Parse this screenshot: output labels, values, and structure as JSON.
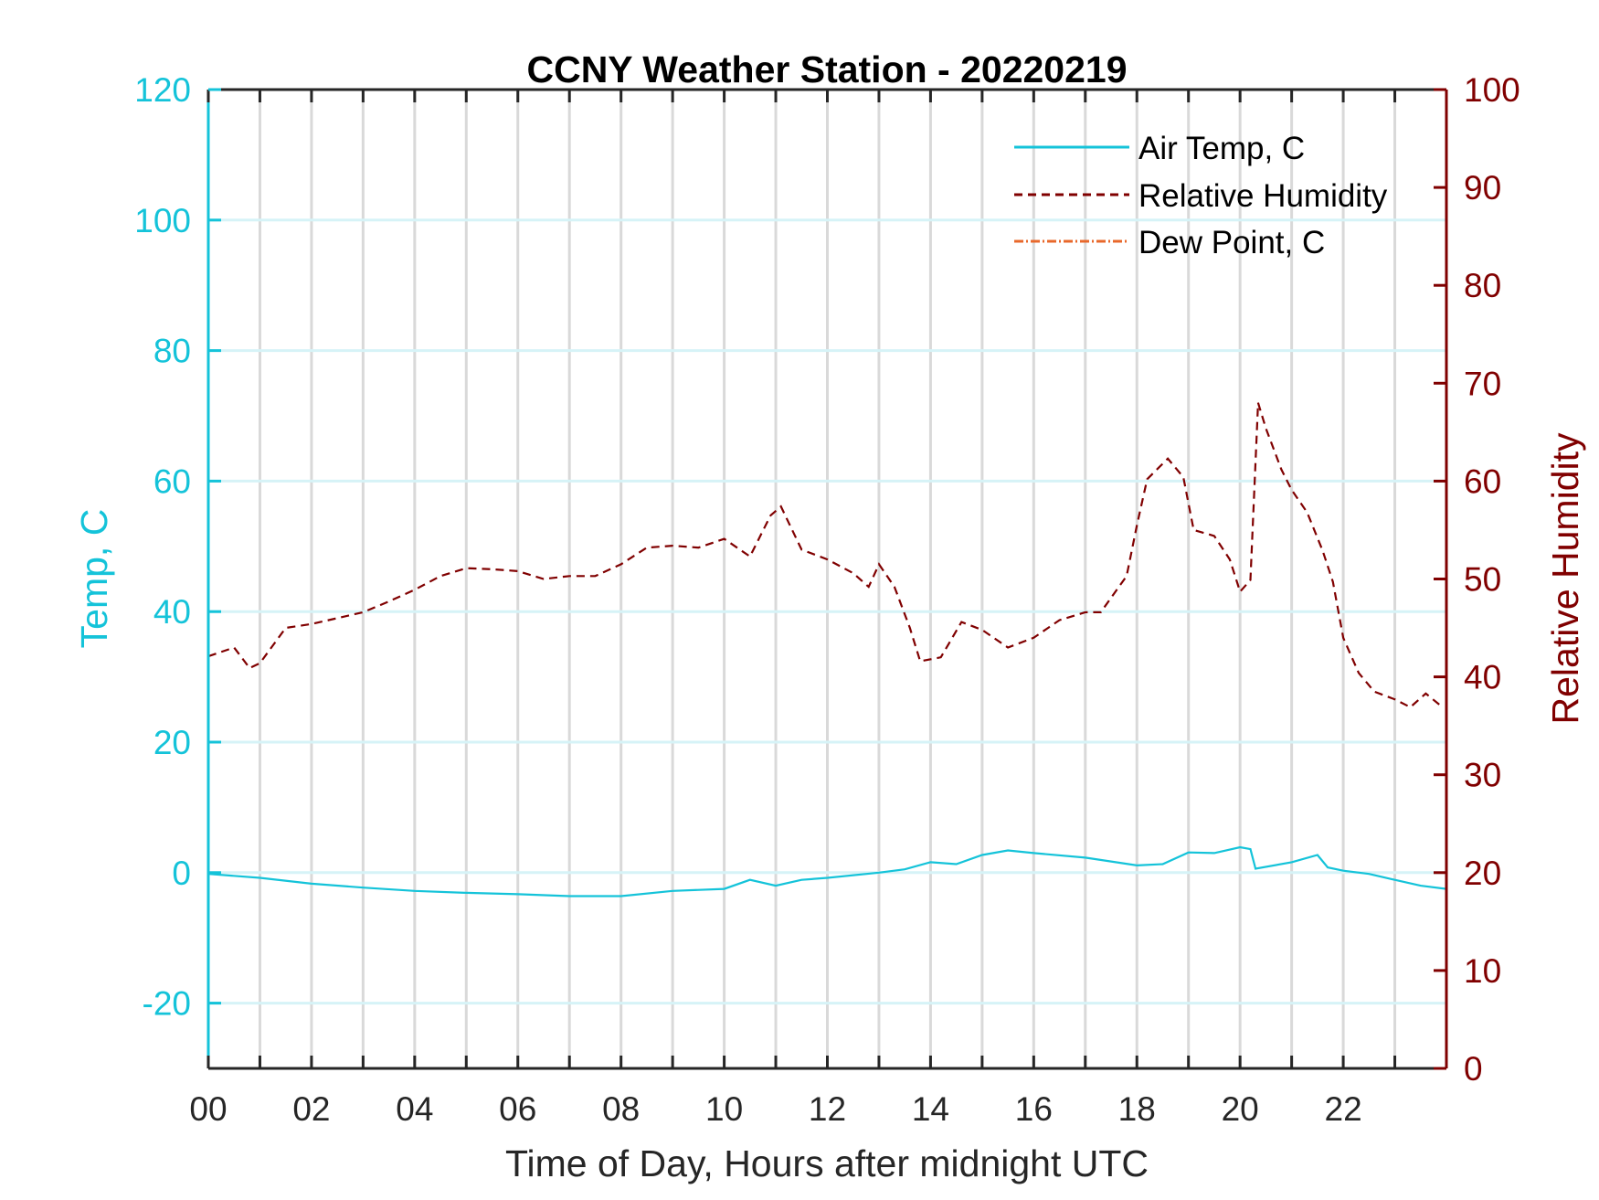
{
  "chart_data": {
    "type": "line",
    "title": "CCNY Weather Station - 20220219",
    "xlabel": "Time of Day, Hours after midnight UTC",
    "ylabel_left": "Temp, C",
    "ylabel_right": "Relative Humidity",
    "xlim": [
      0,
      24
    ],
    "ylim_left": [
      -30,
      120
    ],
    "ylim_right": [
      0,
      100
    ],
    "x_ticks": [
      0,
      1,
      2,
      3,
      4,
      5,
      6,
      7,
      8,
      9,
      10,
      11,
      12,
      13,
      14,
      15,
      16,
      17,
      18,
      19,
      20,
      21,
      22,
      23
    ],
    "x_tick_labels": [
      "00",
      "02",
      "04",
      "06",
      "08",
      "10",
      "12",
      "14",
      "16",
      "18",
      "20",
      "22"
    ],
    "x_tick_label_values": [
      0,
      2,
      4,
      6,
      8,
      10,
      12,
      14,
      16,
      18,
      20,
      22
    ],
    "y_left_ticks": [
      -20,
      0,
      20,
      40,
      60,
      80,
      100,
      120
    ],
    "y_left_tick_labels": [
      "-20",
      "0",
      "20",
      "40",
      "60",
      "80",
      "100",
      "120"
    ],
    "y_right_ticks": [
      0,
      10,
      20,
      30,
      40,
      50,
      60,
      70,
      80,
      90,
      100
    ],
    "y_right_tick_labels": [
      "0",
      "10",
      "20",
      "30",
      "40",
      "50",
      "60",
      "70",
      "80",
      "90",
      "100"
    ],
    "grid": {
      "vertical": true,
      "horizontal": true
    },
    "legend_position": "top-right",
    "colors": {
      "temp": "#14c3d9",
      "rh": "#800000",
      "dew": "#e8682b",
      "axis": "#262626",
      "vgrid": "#d9d9d9",
      "hgrid": "#d6f3f7"
    },
    "series": [
      {
        "name": "Air Temp, C",
        "axis": "left",
        "style": "solid",
        "x": [
          0,
          1,
          2,
          3,
          4,
          5,
          6,
          7,
          8,
          9,
          10,
          10.5,
          11,
          11.5,
          12,
          13,
          13.5,
          14,
          14.5,
          15,
          15.5,
          16,
          17,
          18,
          18.5,
          19,
          19.5,
          20,
          20.2,
          20.3,
          21,
          21.5,
          21.7,
          22,
          22.5,
          23,
          23.5,
          24
        ],
        "y": [
          -0.2,
          -0.8,
          -1.7,
          -2.3,
          -2.8,
          -3.1,
          -3.3,
          -3.6,
          -3.6,
          -2.8,
          -2.5,
          -1.1,
          -2,
          -1.1,
          -0.8,
          0,
          0.5,
          1.6,
          1.3,
          2.7,
          3.4,
          3,
          2.3,
          1.1,
          1.3,
          3.1,
          3,
          3.9,
          3.6,
          0.6,
          1.6,
          2.7,
          0.8,
          0.3,
          -0.2,
          -1.1,
          -2,
          -2.5
        ]
      },
      {
        "name": "Relative Humidity",
        "axis": "right",
        "style": "dashed",
        "x": [
          0,
          0.5,
          0.8,
          1,
          1.5,
          2,
          3,
          3.5,
          4,
          4.5,
          5,
          5.5,
          6,
          6.5,
          7,
          7.5,
          8,
          8.5,
          9,
          9.5,
          10,
          10.5,
          10.9,
          11.1,
          11.5,
          12,
          12.5,
          12.8,
          13,
          13.3,
          13.6,
          13.8,
          14.2,
          14.6,
          15,
          15.5,
          16,
          16.5,
          17,
          17.3,
          17.8,
          18,
          18.2,
          18.6,
          18.9,
          19.1,
          19.5,
          19.8,
          20,
          20.2,
          20.35,
          20.5,
          20.8,
          21,
          21.3,
          21.6,
          21.8,
          22,
          22.3,
          22.6,
          23,
          23.3,
          23.6,
          23.9
        ],
        "y": [
          42.1,
          43,
          40.9,
          41.4,
          45,
          45.4,
          46.6,
          47.7,
          48.9,
          50.3,
          51.1,
          51,
          50.8,
          50,
          50.3,
          50.3,
          51.5,
          53.2,
          53.4,
          53.2,
          54.1,
          52.3,
          56.5,
          57.4,
          53,
          52,
          50.6,
          49.2,
          51.5,
          49.2,
          45,
          41.6,
          42,
          45.6,
          44.8,
          43,
          44,
          45.8,
          46.6,
          46.6,
          50.3,
          55.5,
          60.2,
          62.3,
          60.4,
          55,
          54.4,
          52,
          48.7,
          49.9,
          68,
          65.4,
          61.2,
          59.1,
          56.8,
          52.9,
          49.7,
          44,
          40.4,
          38.5,
          37.7,
          36.9,
          38.3,
          37
        ]
      },
      {
        "name": "Dew Point, C",
        "axis": "left",
        "style": "dash-dot",
        "x": [],
        "y": []
      }
    ]
  }
}
